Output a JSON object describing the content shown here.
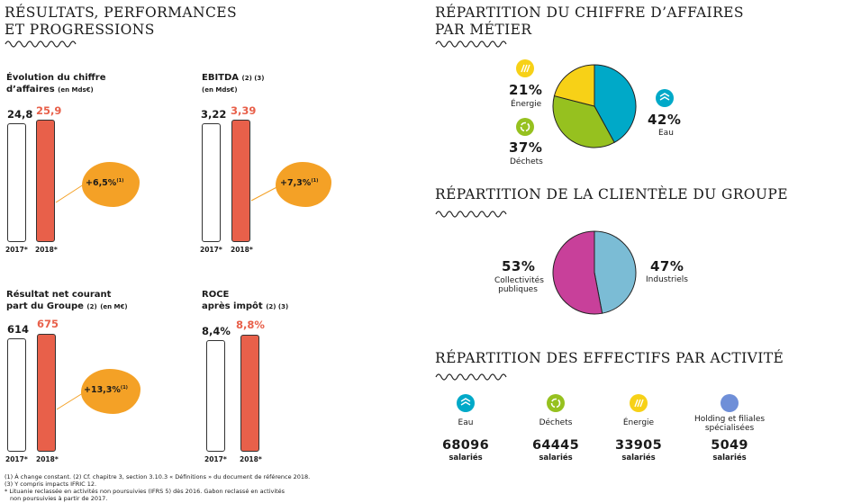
{
  "left_title": [
    "RÉSULTATS, PERFORMANCES",
    "ET PROGRESSIONS"
  ],
  "kpis": [
    {
      "title_l1": "Évolution du chiffre",
      "title_l2": "d’affaires",
      "unit": "(en Mds€)",
      "sup": "",
      "v2017": "24,8",
      "v2018": "25,9",
      "growth": "+6,5%",
      "growth_sup": "(1)",
      "year1": "2017*",
      "year2": "2018*"
    },
    {
      "title_l1": "EBITDA",
      "title_l2": "",
      "unit": "(en Mds€)",
      "sup": "(2) (3)",
      "v2017": "3,22",
      "v2018": "3,39",
      "growth": "+7,3%",
      "growth_sup": "(1)",
      "year1": "2017*",
      "year2": "2018*"
    },
    {
      "title_l1": "Résultat net courant",
      "title_l2": "part du Groupe",
      "unit": "(en M€)",
      "sup": "(2)",
      "v2017": "614",
      "v2018": "675",
      "growth": "+13,3%",
      "growth_sup": "(1)",
      "year1": "2017*",
      "year2": "2018*"
    },
    {
      "title_l1": "ROCE",
      "title_l2": "après impôt",
      "unit": "",
      "sup": "(2) (3)",
      "v2017": "8,4%",
      "v2018": "8,8%",
      "growth": "",
      "growth_sup": "",
      "year1": "2017*",
      "year2": "2018*"
    }
  ],
  "footnotes": [
    "(1) À change constant. (2) Cf. chapitre 3, section 3.10.3 « Définitions » du document de référence 2018.",
    "(3) Y compris impacts IFRIC 12.",
    "* Lituanie reclassée en activités non poursuivies (IFRS 5) dès 2016. Gabon reclassé en activités",
    "non poursuivies à partir de 2017."
  ],
  "revenue_title": [
    "RÉPARTITION DU CHIFFRE D’AFFAIRES",
    "PAR MÉTIER"
  ],
  "clients_title": "RÉPARTITION DE LA CLIENTÈLE DU GROUPE",
  "staff_title": "RÉPARTITION DES EFFECTIFS PAR ACTIVITÉ",
  "revenue_labels": {
    "energy_pct": "21%",
    "energy_label": "Énergie",
    "waste_pct": "37%",
    "waste_label": "Déchets",
    "water_pct": "42%",
    "water_label": "Eau"
  },
  "clients_labels": {
    "public_pct": "53%",
    "public_label_l1": "Collectivités",
    "public_label_l2": "publiques",
    "industrial_pct": "47%",
    "industrial_label": "Industriels"
  },
  "staff": [
    {
      "label_l1": "Eau",
      "label_l2": "",
      "count": "68096",
      "unit": "salariés"
    },
    {
      "label_l1": "Déchets",
      "label_l2": "",
      "count": "64445",
      "unit": "salariés"
    },
    {
      "label_l1": "Énergie",
      "label_l2": "",
      "count": "33905",
      "unit": "salariés"
    },
    {
      "label_l1": "Holding et filiales",
      "label_l2": "spécialisées",
      "count": "5049",
      "unit": "salariés"
    }
  ],
  "colors": {
    "red": "#e8604a",
    "orange": "#f4a126",
    "water": "#00a9c8",
    "waste": "#96c11f",
    "energy": "#f7d117",
    "public": "#c8409a",
    "industrial": "#7bbcd5",
    "holding": "#6f8fd8"
  },
  "icons": {
    "water": "wave-icon",
    "waste": "recycle-icon",
    "energy": "energy-icon",
    "holding": "dot-icon"
  },
  "chart_data": [
    {
      "type": "bar",
      "title": "Évolution du chiffre d’affaires",
      "unit": "(en Mds€)",
      "categories": [
        "2017*",
        "2018*"
      ],
      "values": [
        24.8,
        25.9
      ],
      "growth": "+6,5%"
    },
    {
      "type": "bar",
      "title": "EBITDA",
      "unit": "(en Mds€)",
      "categories": [
        "2017*",
        "2018*"
      ],
      "values": [
        3.22,
        3.39
      ],
      "growth": "+7,3%"
    },
    {
      "type": "bar",
      "title": "Résultat net courant part du Groupe",
      "unit": "(en M€)",
      "categories": [
        "2017*",
        "2018*"
      ],
      "values": [
        614,
        675
      ],
      "growth": "+13,3%"
    },
    {
      "type": "bar",
      "title": "ROCE après impôt",
      "categories": [
        "2017*",
        "2018*"
      ],
      "values": [
        8.4,
        8.8
      ]
    },
    {
      "type": "pie",
      "title": "RÉPARTITION DU CHIFFRE D’AFFAIRES PAR MÉTIER",
      "categories": [
        "Eau",
        "Déchets",
        "Énergie"
      ],
      "values": [
        42,
        37,
        21
      ],
      "colors": [
        "#00a9c8",
        "#96c11f",
        "#f7d117"
      ]
    },
    {
      "type": "pie",
      "title": "RÉPARTITION DE LA CLIENTÈLE DU GROUPE",
      "categories": [
        "Industriels",
        "Collectivités publiques"
      ],
      "values": [
        47,
        53
      ],
      "colors": [
        "#7bbcd5",
        "#c8409a"
      ]
    },
    {
      "type": "table",
      "title": "RÉPARTITION DES EFFECTIFS PAR ACTIVITÉ",
      "categories": [
        "Eau",
        "Déchets",
        "Énergie",
        "Holding et filiales spécialisées"
      ],
      "values": [
        68096,
        64445,
        33905,
        5049
      ]
    }
  ]
}
